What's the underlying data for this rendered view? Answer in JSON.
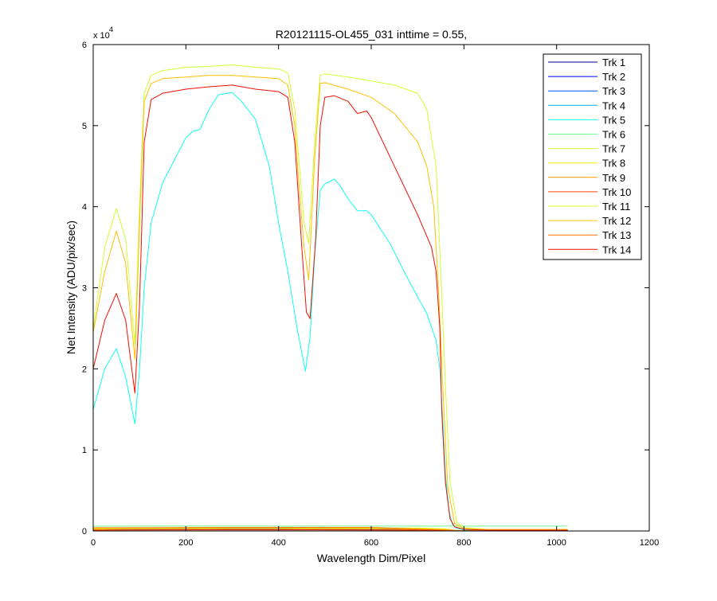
{
  "chart_data": {
    "type": "line",
    "title": "R20121115-OL455_031 inttime = 0.55,",
    "xlabel": "Wavelength Dim/Pixel",
    "ylabel": "Net Intensity (ADU/pix/sec)",
    "xlim": [
      0,
      1200
    ],
    "ylim": [
      0,
      60000
    ],
    "y_exponent_label": "x 10",
    "y_exponent_power": "4",
    "xticks": [
      0,
      200,
      400,
      600,
      800,
      1000,
      1200
    ],
    "xtick_labels": [
      "0",
      "200",
      "400",
      "600",
      "800",
      "1000",
      "1200"
    ],
    "yticks": [
      0,
      10000,
      20000,
      30000,
      40000,
      50000,
      60000
    ],
    "ytick_labels": [
      "0",
      "1",
      "2",
      "3",
      "4",
      "5",
      "6"
    ],
    "grid": false,
    "legend_position": "top-right",
    "series": [
      {
        "name": "Trk 1",
        "color": "#00008F",
        "x": [
          0,
          100,
          200,
          300,
          400,
          500,
          600,
          700,
          760,
          780,
          800,
          1024
        ],
        "y": [
          150,
          160,
          170,
          180,
          180,
          170,
          170,
          160,
          120,
          40,
          20,
          20
        ]
      },
      {
        "name": "Trk 2",
        "color": "#0000EF",
        "x": [
          0,
          100,
          200,
          300,
          400,
          500,
          600,
          700,
          760,
          780,
          800,
          1024
        ],
        "y": [
          200,
          220,
          240,
          250,
          250,
          240,
          230,
          220,
          160,
          50,
          20,
          20
        ]
      },
      {
        "name": "Trk 3",
        "color": "#0050FF",
        "x": [
          0,
          100,
          200,
          300,
          400,
          500,
          600,
          700,
          760,
          780,
          800,
          1024
        ],
        "y": [
          250,
          280,
          300,
          320,
          320,
          300,
          290,
          270,
          200,
          60,
          20,
          20
        ]
      },
      {
        "name": "Trk 4",
        "color": "#00AFFF",
        "x": [
          0,
          100,
          200,
          300,
          400,
          500,
          600,
          700,
          760,
          780,
          800,
          1024
        ],
        "y": [
          300,
          340,
          380,
          400,
          400,
          380,
          360,
          330,
          240,
          70,
          20,
          20
        ]
      },
      {
        "name": "Trk 5",
        "color": "#10FFEF",
        "x": [
          0,
          25,
          50,
          70,
          90,
          100,
          110,
          125,
          150,
          200,
          215,
          230,
          250,
          270,
          290,
          300,
          320,
          350,
          380,
          400,
          420,
          440,
          458,
          468,
          478,
          490,
          500,
          520,
          530,
          550,
          570,
          590,
          600,
          640,
          680,
          720,
          740,
          748,
          755,
          760,
          768,
          775,
          785,
          800,
          820,
          850,
          1024
        ],
        "y": [
          15000,
          20000,
          22500,
          19000,
          13200,
          20000,
          30000,
          38000,
          43000,
          48500,
          49300,
          49500,
          52000,
          53800,
          54000,
          54100,
          53000,
          50800,
          45000,
          38000,
          32000,
          25000,
          19700,
          24000,
          34000,
          42000,
          42800,
          43400,
          42800,
          41000,
          39500,
          39500,
          39000,
          35500,
          31000,
          26800,
          23500,
          20000,
          13000,
          7000,
          2500,
          800,
          300,
          150,
          100,
          100,
          100
        ]
      },
      {
        "name": "Trk 6",
        "color": "#70FF8F",
        "x": [
          0,
          200,
          400,
          600,
          800,
          1024
        ],
        "y": [
          600,
          600,
          600,
          600,
          600,
          600
        ]
      },
      {
        "name": "Trk 7",
        "color": "#CFFF30",
        "x": [
          0,
          100,
          200,
          300,
          400,
          500,
          600,
          700,
          760,
          780,
          800,
          1024
        ],
        "y": [
          350,
          380,
          400,
          420,
          420,
          400,
          380,
          360,
          260,
          80,
          20,
          20
        ]
      },
      {
        "name": "Trk 8",
        "color": "#FFEF00",
        "x": [
          0,
          100,
          200,
          300,
          400,
          500,
          600,
          700,
          760,
          780,
          800,
          1024
        ],
        "y": [
          300,
          330,
          350,
          360,
          360,
          350,
          330,
          300,
          220,
          70,
          20,
          20
        ]
      },
      {
        "name": "Trk 9",
        "color": "#FF9F00",
        "x": [
          0,
          100,
          200,
          300,
          400,
          500,
          600,
          700,
          760,
          780,
          800,
          1024
        ],
        "y": [
          200,
          220,
          240,
          260,
          260,
          240,
          230,
          210,
          160,
          50,
          20,
          20
        ]
      },
      {
        "name": "Trk 10",
        "color": "#FF4000",
        "x": [
          0,
          100,
          200,
          300,
          400,
          500,
          600,
          700,
          760,
          780,
          800,
          1024
        ],
        "y": [
          100,
          110,
          120,
          130,
          130,
          120,
          110,
          100,
          80,
          30,
          10,
          10
        ]
      },
      {
        "name": "Trk 11",
        "color": "#CFFF30",
        "x": [
          0,
          25,
          50,
          70,
          90,
          100,
          110,
          125,
          150,
          200,
          250,
          300,
          350,
          400,
          420,
          435,
          445,
          455,
          465,
          478,
          490,
          500,
          550,
          600,
          650,
          700,
          720,
          740,
          750,
          760,
          770,
          785,
          800,
          850,
          1024
        ],
        "y": [
          25000,
          35000,
          39800,
          36000,
          23000,
          40000,
          54000,
          56200,
          56800,
          57200,
          57300,
          57500,
          57200,
          57000,
          56500,
          52000,
          45000,
          38000,
          35500,
          48000,
          56200,
          56400,
          56000,
          55500,
          55000,
          54000,
          52000,
          45000,
          32000,
          18000,
          6000,
          1000,
          400,
          200,
          200
        ]
      },
      {
        "name": "Trk 12",
        "color": "#FFC000",
        "x": [
          0,
          25,
          50,
          70,
          90,
          100,
          110,
          125,
          150,
          200,
          250,
          300,
          350,
          400,
          420,
          435,
          445,
          455,
          465,
          478,
          490,
          500,
          550,
          600,
          650,
          700,
          720,
          735,
          745,
          755,
          765,
          780,
          800,
          850,
          1024
        ],
        "y": [
          24500,
          32000,
          37000,
          33000,
          21200,
          38000,
          53000,
          55200,
          55800,
          56000,
          56200,
          56200,
          56000,
          55800,
          55000,
          50000,
          42000,
          35000,
          31000,
          46000,
          55200,
          55300,
          54500,
          53500,
          51500,
          48000,
          45000,
          40000,
          30000,
          17000,
          5500,
          900,
          300,
          200,
          200
        ]
      },
      {
        "name": "Trk 13",
        "color": "#FF7000",
        "x": [
          0,
          200,
          400,
          600,
          800,
          1024
        ],
        "y": [
          400,
          420,
          440,
          440,
          30,
          20
        ]
      },
      {
        "name": "Trk 14",
        "color": "#EF1000",
        "x": [
          0,
          25,
          50,
          70,
          90,
          100,
          110,
          125,
          150,
          200,
          250,
          300,
          350,
          400,
          420,
          435,
          450,
          460,
          468,
          480,
          490,
          500,
          520,
          550,
          570,
          590,
          600,
          650,
          700,
          730,
          740,
          748,
          752,
          760,
          770,
          780,
          800,
          850,
          1024
        ],
        "y": [
          20000,
          26000,
          29300,
          26000,
          17000,
          28000,
          48000,
          53200,
          54000,
          54500,
          54800,
          55000,
          54500,
          54200,
          53500,
          48000,
          35000,
          27000,
          26200,
          36000,
          50000,
          53500,
          53700,
          53000,
          51500,
          51800,
          51000,
          45000,
          39000,
          35000,
          32000,
          25000,
          15000,
          6000,
          1500,
          500,
          200,
          100,
          100
        ]
      }
    ]
  }
}
